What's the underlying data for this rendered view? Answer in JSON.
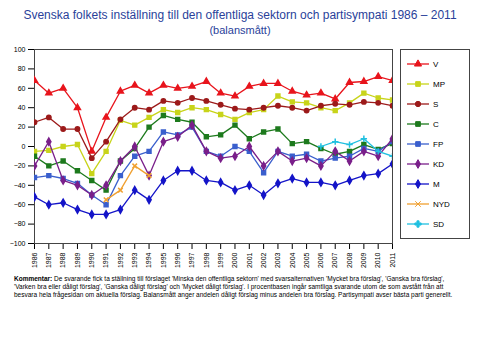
{
  "chart_data": {
    "type": "line",
    "title": "Svenska folkets inställning till den offentliga sektorn och partisympati 1986 – 2011",
    "subtitle": "(balansmått)",
    "caption_label": "Kommentar:",
    "caption": "De svarande fick ta ställning till förslaget 'Minska den offentliga sektorn' med svarsalternativen 'Mycket bra förslag', 'Ganska bra förslag', 'Varken bra eller dåligt förslag', 'Ganska dåligt förslag' och 'Mycket dåligt förslag'. I procentbasen ingår samtliga svarande utom de som avstått från att besvara hela frågesidan om aktuella förslag. Balansmått anger andelen dåligt förslag minus andelen bra förslag. Partisympati avser bästa parti generellt.",
    "x": [
      1986,
      1987,
      1988,
      1989,
      1990,
      1991,
      1992,
      1993,
      1994,
      1995,
      1996,
      1997,
      1998,
      1999,
      2000,
      2001,
      2002,
      2003,
      2004,
      2005,
      2006,
      2007,
      2008,
      2009,
      2010,
      2011
    ],
    "xlim": [
      1986,
      2011
    ],
    "xticks": [
      1986,
      1987,
      1988,
      1989,
      1990,
      1991,
      1992,
      1993,
      1994,
      1995,
      1996,
      1997,
      1998,
      1999,
      2000,
      2001,
      2002,
      2003,
      2004,
      2005,
      2006,
      2007,
      2008,
      2009,
      2010,
      2011
    ],
    "ylim": [
      -100,
      100
    ],
    "yticks": [
      -100,
      -80,
      -60,
      -40,
      -20,
      0,
      20,
      40,
      60,
      80,
      100
    ],
    "legend": "right",
    "series": [
      {
        "name": "V",
        "color": "#e8141c",
        "marker": "triangle",
        "values": [
          68,
          55,
          60,
          40,
          -5,
          30,
          57,
          63,
          55,
          63,
          60,
          62,
          67,
          55,
          52,
          62,
          65,
          65,
          57,
          53,
          55,
          49,
          66,
          67,
          72,
          68
        ]
      },
      {
        "name": "MP",
        "color": "#c8d41a",
        "marker": "square",
        "values": [
          -5,
          -4,
          0,
          2,
          -28,
          -5,
          27,
          22,
          30,
          38,
          35,
          40,
          38,
          33,
          28,
          35,
          38,
          52,
          46,
          45,
          40,
          37,
          45,
          55,
          50,
          48
        ]
      },
      {
        "name": "S",
        "color": "#9c1a1a",
        "marker": "circle",
        "values": [
          25,
          30,
          18,
          18,
          -12,
          5,
          28,
          40,
          38,
          47,
          45,
          50,
          47,
          43,
          39,
          38,
          40,
          42,
          40,
          37,
          42,
          44,
          43,
          46,
          45,
          42
        ]
      },
      {
        "name": "C",
        "color": "#1d7a1d",
        "marker": "square",
        "values": [
          -10,
          -20,
          -15,
          -25,
          -35,
          -45,
          -15,
          -2,
          20,
          32,
          28,
          25,
          10,
          12,
          22,
          8,
          15,
          18,
          3,
          5,
          -2,
          -8,
          -5,
          2,
          -3,
          3
        ]
      },
      {
        "name": "FP",
        "color": "#3a5fcd",
        "marker": "square",
        "values": [
          -32,
          -30,
          -33,
          -38,
          -50,
          -60,
          -30,
          -10,
          -5,
          15,
          12,
          20,
          -5,
          -10,
          0,
          -5,
          -27,
          -5,
          -10,
          -8,
          -15,
          -12,
          -10,
          -2,
          -5,
          5
        ]
      },
      {
        "name": "KD",
        "color": "#7a1f8a",
        "marker": "diamond",
        "values": [
          -20,
          5,
          -35,
          -40,
          -50,
          -40,
          -15,
          0,
          -30,
          5,
          10,
          22,
          -5,
          -12,
          -10,
          0,
          -20,
          -5,
          -15,
          -12,
          -20,
          -5,
          -15,
          -5,
          -10,
          8
        ]
      },
      {
        "name": "M",
        "color": "#1414c8",
        "marker": "diamond",
        "values": [
          -52,
          -60,
          -58,
          -65,
          -70,
          -70,
          -65,
          -45,
          -55,
          -35,
          -25,
          -25,
          -35,
          -37,
          -45,
          -40,
          -50,
          -38,
          -33,
          -37,
          -37,
          -40,
          -35,
          -30,
          -28,
          -18
        ]
      },
      {
        "name": "NYD",
        "color": "#f0a030",
        "marker": "times",
        "values": [
          null,
          null,
          null,
          null,
          null,
          -55,
          -45,
          -20,
          -30,
          null,
          null,
          null,
          null,
          null,
          null,
          null,
          null,
          null,
          null,
          null,
          null,
          null,
          null,
          null,
          null,
          null
        ]
      },
      {
        "name": "SD",
        "color": "#20c0e0",
        "marker": "plus",
        "values": [
          null,
          null,
          null,
          null,
          null,
          null,
          null,
          null,
          null,
          null,
          null,
          null,
          null,
          null,
          null,
          null,
          null,
          null,
          null,
          null,
          0,
          5,
          2,
          8,
          -5,
          -10
        ]
      }
    ]
  }
}
